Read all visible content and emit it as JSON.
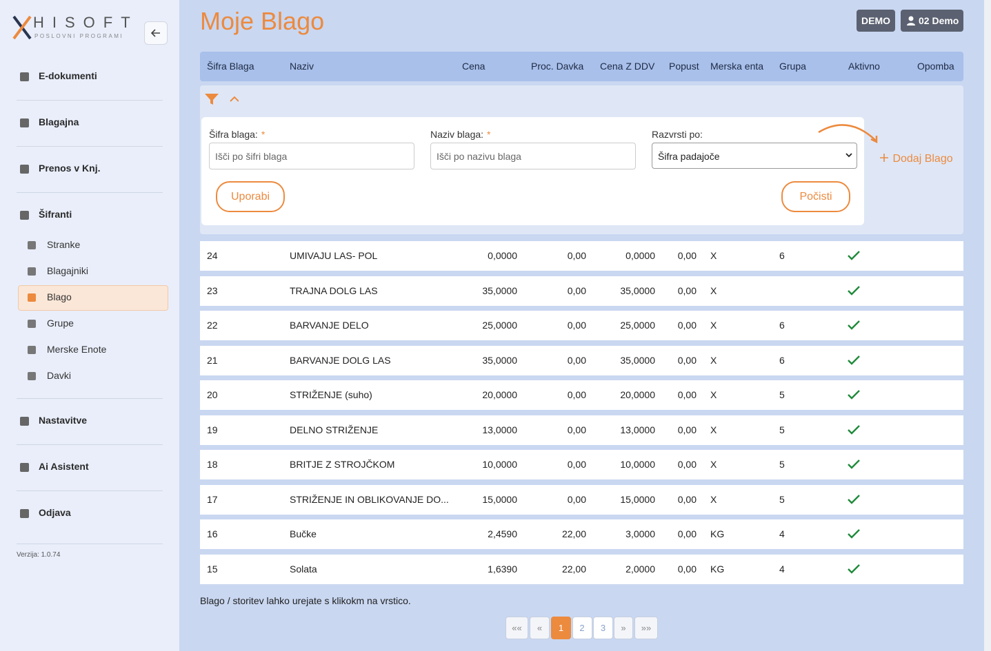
{
  "sidebar": {
    "brand": "HISOFT",
    "tagline": "POSLOVNI PROGRAMI",
    "menu": [
      "E-dokumenti",
      "Blagajna",
      "Prenos v Knj.",
      "Šifranti"
    ],
    "submenu": [
      "Stranke",
      "Blagajniki",
      "Blago",
      "Grupe",
      "Merske Enote",
      "Davki"
    ],
    "menu_bottom": [
      "Nastavitve",
      "Ai Asistent",
      "Odjava"
    ],
    "version": "Verzija: 1.0.74"
  },
  "header": {
    "title": "Moje Blago",
    "badge": "DEMO",
    "user": "02 Demo"
  },
  "table": {
    "columns": [
      "Šifra Blaga",
      "Naziv",
      "Cena",
      "Proc. Davka",
      "Cena Z DDV",
      "Popust",
      "Merska enta",
      "Grupa",
      "Aktivno",
      "Opomba"
    ],
    "rows": [
      [
        "24",
        "UMIVAJU LAS- POL",
        "0,0000",
        "0,00",
        "0,0000",
        "0,00",
        "X",
        "6"
      ],
      [
        "23",
        "TRAJNA DOLG LAS",
        "35,0000",
        "0,00",
        "35,0000",
        "0,00",
        "X",
        null
      ],
      [
        "22",
        "BARVANJE DELO",
        "25,0000",
        "0,00",
        "25,0000",
        "0,00",
        "X",
        "6"
      ],
      [
        "21",
        "BARVANJE DOLG LAS",
        "35,0000",
        "0,00",
        "35,0000",
        "0,00",
        "X",
        "6"
      ],
      [
        "20",
        "STRIŽENJE (suho)",
        "20,0000",
        "0,00",
        "20,0000",
        "0,00",
        "X",
        "5"
      ],
      [
        "19",
        "DELNO STRIŽENJE",
        "13,0000",
        "0,00",
        "13,0000",
        "0,00",
        "X",
        "5"
      ],
      [
        "18",
        "BRITJE Z STROJČKOM",
        "10,0000",
        "0,00",
        "10,0000",
        "0,00",
        "X",
        "5"
      ],
      [
        "17",
        "STRIŽENJE IN OBLIKOVANJE DO...",
        "15,0000",
        "0,00",
        "15,0000",
        "0,00",
        "X",
        "5"
      ],
      [
        "16",
        "Bučke",
        "2,4590",
        "22,00",
        "3,0000",
        "0,00",
        "KG",
        "4"
      ],
      [
        "15",
        "Solata",
        "1,6390",
        "22,00",
        "2,0000",
        "0,00",
        "KG",
        "4"
      ]
    ]
  },
  "filter": {
    "fields": [
      {
        "label": "Šifra blaga:",
        "required": "*",
        "placeholder": "Išči po šifri blaga"
      },
      {
        "label": "Naziv blaga:",
        "required": "*",
        "placeholder": "Išči po nazivu blaga"
      },
      {
        "label": "Razvrsti po:",
        "value": "Šifra padajoče"
      }
    ],
    "apply": "Uporabi",
    "clear": "Počisti",
    "add": "Dodaj Blago"
  },
  "note": "Blago / storitev lahko urejate s klikokm na vrstico.",
  "pagination": {
    "first": "««",
    "prev": "«",
    "pages": [
      "1",
      "2",
      "3"
    ],
    "next": "»",
    "last": "»»"
  }
}
